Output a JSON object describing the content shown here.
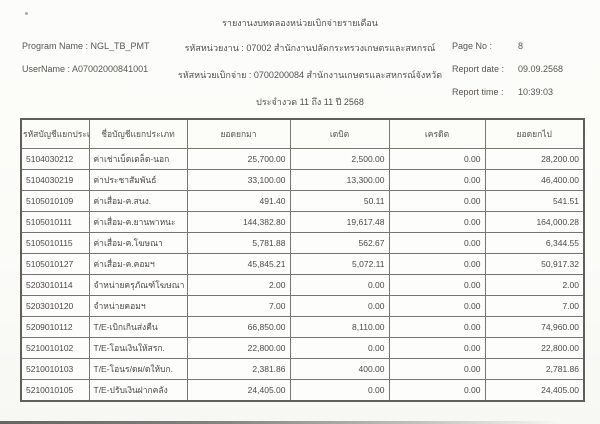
{
  "page": {
    "title": "รายงานงบทดลองหน่วยเบิกจ่ายรายเดือน",
    "program_name_line": "Program Name : NGL_TB_PMT",
    "username_line": "UserName : A07002000841001",
    "agency_line": "รหัสหน่วยงาน : 07002 สำนักงานปลัดกระทรวงเกษตรและสหกรณ์",
    "disbursing_unit_line": "รหัสหน่วยเบิกจ่าย : 0700200084 สำนักงานเกษตรและสหกรณ์จังหวัด",
    "period_line": "ประจำงวด 11 ถึง 11 ปี 2568",
    "page_no_label": "Page No :",
    "page_no": "8",
    "report_date_label": "Report date :",
    "report_date": "09.09.2568",
    "report_time_label": "Report time :",
    "report_time": "10:39:03"
  },
  "table": {
    "headers": [
      "รหัสบัญชีแยกประเภท",
      "ชื่อบัญชีแยกประเภท",
      "ยอดยกมา",
      "เดบิต",
      "เครดิต",
      "ยอดยกไป"
    ],
    "rows": [
      {
        "code": "5104030212",
        "name": "ค่าเช่าเบ็ดเตล็ด-นอก",
        "brought_forward": "25,700.00",
        "debit": "2,500.00",
        "credit": "0.00",
        "carried_forward": "28,200.00"
      },
      {
        "code": "5104030219",
        "name": "ค่าประชาสัมพันธ์",
        "brought_forward": "33,100.00",
        "debit": "13,300.00",
        "credit": "0.00",
        "carried_forward": "46,400.00"
      },
      {
        "code": "5105010109",
        "name": "ค่าเสื่อม-ค.สนง.",
        "brought_forward": "491.40",
        "debit": "50.11",
        "credit": "0.00",
        "carried_forward": "541.51"
      },
      {
        "code": "5105010111",
        "name": "ค่าเสื่อม-ค.ยานพาหนะ",
        "brought_forward": "144,382.80",
        "debit": "19,617.48",
        "credit": "0.00",
        "carried_forward": "164,000.28"
      },
      {
        "code": "5105010115",
        "name": "ค่าเสื่อม-ค.โฆษณา",
        "brought_forward": "5,781.88",
        "debit": "562.67",
        "credit": "0.00",
        "carried_forward": "6,344.55"
      },
      {
        "code": "5105010127",
        "name": "ค่าเสื่อม-ค.คอมฯ",
        "brought_forward": "45,845.21",
        "debit": "5,072.11",
        "credit": "0.00",
        "carried_forward": "50,917.32"
      },
      {
        "code": "5203010114",
        "name": "จำหน่ายครุภัณฑ์โฆษณา",
        "brought_forward": "2.00",
        "debit": "0.00",
        "credit": "0.00",
        "carried_forward": "2.00"
      },
      {
        "code": "5203010120",
        "name": "จำหน่ายคอมฯ",
        "brought_forward": "7.00",
        "debit": "0.00",
        "credit": "0.00",
        "carried_forward": "7.00"
      },
      {
        "code": "5209010112",
        "name": "T/E-เบิกเกินส่งคืน",
        "brought_forward": "66,850.00",
        "debit": "8,110.00",
        "credit": "0.00",
        "carried_forward": "74,960.00"
      },
      {
        "code": "5210010102",
        "name": "T/E-โอนเงินให้สรก.",
        "brought_forward": "22,800.00",
        "debit": "0.00",
        "credit": "0.00",
        "carried_forward": "22,800.00"
      },
      {
        "code": "5210010103",
        "name": "T/E-โอนร/ดผ/ดให้บก.",
        "brought_forward": "2,381.86",
        "debit": "400.00",
        "credit": "0.00",
        "carried_forward": "2,781.86"
      },
      {
        "code": "5210010105",
        "name": "T/E-ปรับเงินฝากคลัง",
        "brought_forward": "24,405.00",
        "debit": "0.00",
        "credit": "0.00",
        "carried_forward": "24,405.00"
      }
    ]
  },
  "colors": {
    "paper": "#fcfcfa",
    "ink": "#514e4a",
    "table_border": "#787672"
  }
}
